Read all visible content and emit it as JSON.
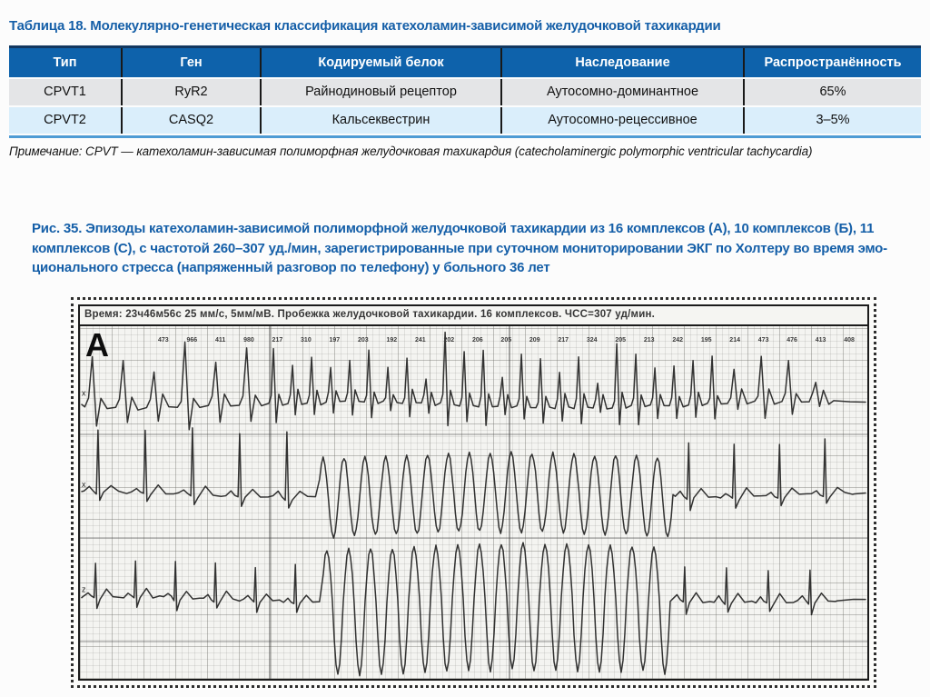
{
  "colors": {
    "accent_blue": "#155fa8",
    "table_header_bg": "#0e62ab",
    "table_top_border": "#12375f",
    "table_bottom_border": "#4e9bd4",
    "row_gray": "#e4e5e7",
    "row_blue": "#daeefb",
    "ecg_ink": "#222222"
  },
  "table": {
    "title": "Таблица 18. Молекулярно-генетическая классификация катехоламин-зависимой желудочковой тахикардии",
    "columns": [
      "Тип",
      "Ген",
      "Кодируемый белок",
      "Наследование",
      "Распространённость"
    ],
    "rows": [
      [
        "CPVT1",
        "RyR2",
        "Райнодиновый рецептор",
        "Аутосомно-доминантное",
        "65%"
      ],
      [
        "CPVT2",
        "CASQ2",
        "Кальсеквестрин",
        "Аутосомно-рецессивное",
        "3–5%"
      ]
    ]
  },
  "note_text": "Примечание: CPVT — катехоламин-зависимая полиморфная желудочковая тахикардия (catecholaminergic polymorphic ventricular tachycardia)",
  "figure": {
    "caption_lines": [
      "Рис. 35. Эпизоды катехоламин-зависимой полиморфной желудочковой тахикардии из 16 комплексов (А), 10 комплексов (Б), 11",
      "комплексов (С), с частотой 260–307 уд./мин, зарегистрированные при суточном мониторировании ЭКГ по Холтеру во время эмо-",
      "ционального стресса (напряженный разговор по телефону) у больного 36 лет"
    ],
    "panel_label": "А",
    "strip_header": "Время: 23ч46м56с  25 мм/с,  5мм/мВ. Пробежка желудочковой тахикардии. 16 комплексов. ЧСС=307 уд/мин.",
    "rr_values": [
      "473",
      "966",
      "411",
      "980",
      "217",
      "310",
      "197",
      "203",
      "192",
      "241",
      "202",
      "206",
      "205",
      "209",
      "217",
      "324",
      "205",
      "213",
      "242",
      "195",
      "214",
      "473",
      "476",
      "413",
      "408"
    ],
    "lead_marks": [
      "x",
      "x",
      "z"
    ],
    "traces": [
      {
        "baseline": 84,
        "seed": 7,
        "segments": [
          {
            "type": "poly",
            "count": 6,
            "rr": 34,
            "amp": 55
          },
          {
            "type": "poly",
            "count": 24,
            "rr": 21,
            "amp": 46
          },
          {
            "type": "poly",
            "count": 4,
            "rr": 30,
            "amp": 38
          }
        ]
      },
      {
        "baseline": 184,
        "seed": 11,
        "segments": [
          {
            "type": "sinus",
            "count": 5,
            "rr": 52,
            "amp": 70
          },
          {
            "type": "vt",
            "count": 17,
            "rr": 23,
            "ampUp": 42,
            "ampDown": 44
          },
          {
            "type": "sinus",
            "count": 4,
            "rr": 50,
            "amp": 58
          }
        ]
      },
      {
        "baseline": 299,
        "seed": 23,
        "segments": [
          {
            "type": "sinus",
            "count": 6,
            "rr": 44,
            "amp": 38
          },
          {
            "type": "vt",
            "count": 16,
            "rr": 24,
            "ampUp": 58,
            "ampDown": 80
          },
          {
            "type": "sinus",
            "count": 4,
            "rr": 46,
            "amp": 36
          }
        ]
      }
    ]
  }
}
